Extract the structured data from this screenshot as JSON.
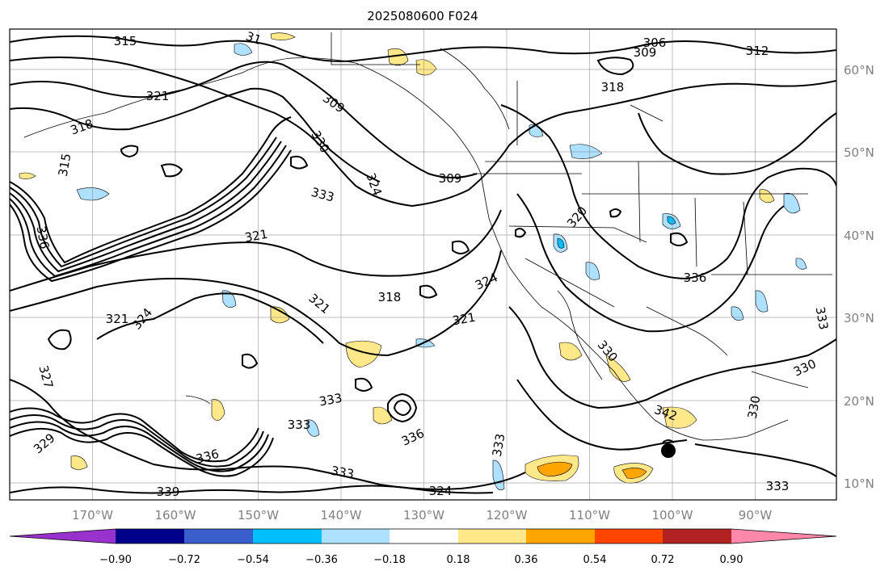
{
  "title": "2025080600 F024",
  "map": {
    "lat_labels": [
      "60°N",
      "50°N",
      "40°N",
      "30°N",
      "20°N",
      "10°N"
    ],
    "lon_labels": [
      "170°W",
      "160°W",
      "150°W",
      "140°W",
      "130°W",
      "120°W",
      "110°W",
      "100°W",
      "90°W"
    ],
    "contour_labels": [
      "315",
      "31",
      "306",
      "309",
      "312",
      "318",
      "321",
      "318",
      "315",
      "309",
      "330",
      "324",
      "309",
      "333",
      "321",
      "336",
      "320",
      "336",
      "318",
      "324",
      "321",
      "321",
      "324",
      "321",
      "333",
      "330",
      "330",
      "327",
      "333",
      "333",
      "336",
      "342",
      "330",
      "336",
      "333",
      "329",
      "333",
      "324",
      "339",
      "333"
    ]
  },
  "colorbar": {
    "labels": [
      "−0.90",
      "−0.72",
      "−0.54",
      "−0.36",
      "−0.18",
      "0.18",
      "0.36",
      "0.54",
      "0.72",
      "0.90"
    ],
    "colors": [
      "#9932cc",
      "#00008b",
      "#3a5fcd",
      "#00bfff",
      "#aee0ff",
      "#ffffff",
      "#ffe88a",
      "#ffa500",
      "#ff4500",
      "#b22222",
      "#ff88aa"
    ]
  }
}
